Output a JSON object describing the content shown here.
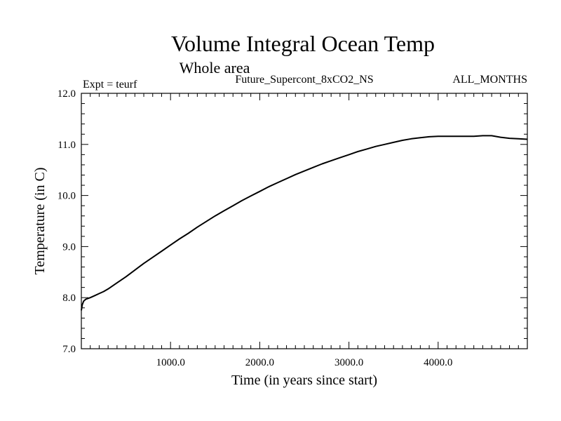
{
  "chart_data": {
    "type": "line",
    "title": "Volume Integral Ocean Temp",
    "subtitle": "Whole area",
    "experiment_label": "Expt = teurf",
    "run_label": "Future_Supercont_8xCO2_NS",
    "months_label": "ALL_MONTHS",
    "xlabel": "Time (in years since start)",
    "ylabel": "Temperature (in C)",
    "xlim": [
      0,
      5000
    ],
    "ylim": [
      7.0,
      12.0
    ],
    "x_ticks": [
      1000,
      2000,
      3000,
      4000
    ],
    "x_tick_labels": [
      "1000.0",
      "2000.0",
      "3000.0",
      "4000.0"
    ],
    "y_ticks": [
      7,
      8,
      9,
      10,
      11,
      12
    ],
    "y_tick_labels": [
      "7.0",
      "8.0",
      "9.0",
      "10.0",
      "11.0",
      "12.0"
    ],
    "grid": false,
    "line_color": "#000000",
    "series": [
      {
        "x": [
          0,
          10,
          25,
          50,
          100,
          150,
          200,
          250,
          300,
          400,
          500,
          600,
          700,
          800,
          900,
          1000,
          1100,
          1200,
          1300,
          1400,
          1500,
          1600,
          1700,
          1800,
          1900,
          2000,
          2100,
          2200,
          2300,
          2400,
          2500,
          2600,
          2700,
          2800,
          2900,
          3000,
          3100,
          3200,
          3300,
          3400,
          3500,
          3600,
          3700,
          3800,
          3900,
          4000,
          4100,
          4200,
          4300,
          4400,
          4500,
          4600,
          4700,
          4800,
          4900,
          5000
        ],
        "y": [
          7.75,
          7.86,
          7.93,
          7.97,
          8.0,
          8.04,
          8.08,
          8.12,
          8.17,
          8.29,
          8.41,
          8.54,
          8.67,
          8.79,
          8.91,
          9.03,
          9.15,
          9.26,
          9.38,
          9.49,
          9.6,
          9.7,
          9.8,
          9.9,
          9.99,
          10.08,
          10.17,
          10.25,
          10.33,
          10.41,
          10.48,
          10.55,
          10.62,
          10.68,
          10.74,
          10.8,
          10.86,
          10.91,
          10.96,
          11.0,
          11.04,
          11.08,
          11.11,
          11.13,
          11.15,
          11.16,
          11.16,
          11.16,
          11.16,
          11.16,
          11.17,
          11.17,
          11.14,
          11.12,
          11.11,
          11.1
        ]
      }
    ]
  }
}
